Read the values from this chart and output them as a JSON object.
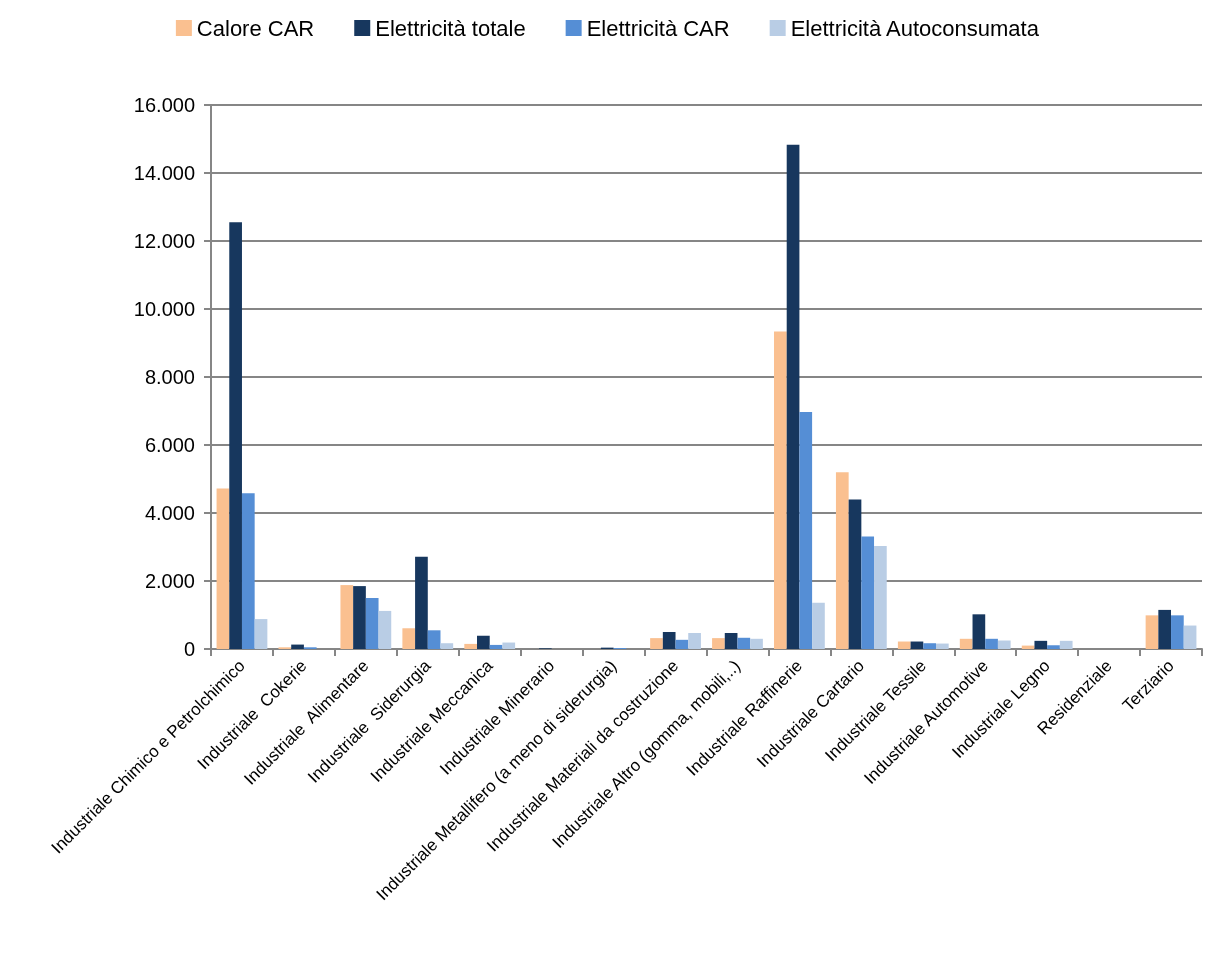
{
  "chart_data": {
    "type": "bar",
    "categories": [
      "Industriale Chimico e Petrolchimico",
      "Industriale  Cokerie",
      "Industriale  Alimentare",
      "Industriale  Siderurgia",
      "Industriale Meccanica",
      "Industriale Minerario",
      "Industriale Metallifero (a meno di siderurgia)",
      "Industriale Materiali da costruzione",
      "Industriale Altro (gomma, mobili,..)",
      "Industriale Raffinerie",
      "Industriale Cartario",
      "Industriale Tessile",
      "Industriale Automotive",
      "Industriale Legno",
      "Residenziale",
      "Terziario"
    ],
    "series": [
      {
        "name": "Calore CAR",
        "color": "#fac090",
        "values": [
          4720,
          50,
          1880,
          610,
          150,
          null,
          0,
          320,
          320,
          9340,
          5200,
          220,
          300,
          100,
          0,
          990
        ]
      },
      {
        "name": "Elettricità totale",
        "color": "#17375e",
        "values": [
          12550,
          130,
          1850,
          2710,
          390,
          20,
          40,
          500,
          470,
          14830,
          4400,
          220,
          1020,
          240,
          0,
          1150
        ]
      },
      {
        "name": "Elettricità CAR",
        "color": "#558ed5",
        "values": [
          4580,
          50,
          1500,
          550,
          120,
          null,
          30,
          270,
          330,
          6970,
          3310,
          170,
          300,
          110,
          0,
          990
        ]
      },
      {
        "name": "Elettricità Autoconsumata",
        "color": "#b9cde5",
        "values": [
          880,
          null,
          1120,
          170,
          190,
          null,
          null,
          470,
          300,
          1360,
          3030,
          160,
          250,
          240,
          0,
          690
        ]
      }
    ],
    "ylim": [
      0,
      16000
    ],
    "yticks": [
      0,
      {
        "value": 2000,
        "label": "2.000"
      },
      {
        "value": 4000,
        "label": "4.000"
      },
      {
        "value": 6000,
        "label": "6.000"
      },
      {
        "value": 8000,
        "label": "8.000"
      },
      {
        "value": 10000,
        "label": "10.000"
      },
      {
        "value": 12000,
        "label": "12.000"
      },
      {
        "value": 14000,
        "label": "14.000"
      },
      {
        "value": 16000,
        "label": "16.000"
      }
    ],
    "grid": "y",
    "legend": "top"
  }
}
